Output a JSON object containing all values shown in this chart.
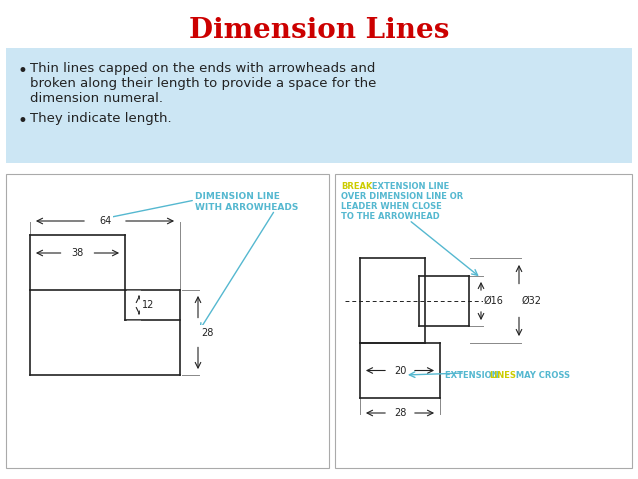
{
  "title": "Dimension Lines",
  "title_color": "#cc0000",
  "title_fontsize": 20,
  "bullet1_line1": "Thin lines capped on the ends with arrowheads and",
  "bullet1_line2": "broken along their length to provide a space for the",
  "bullet1_line3": "dimension numeral.",
  "bullet2": "They indicate length.",
  "bg_color": "#ffffff",
  "bullet_bg": "#cce6f4",
  "cyan": "#55b8d0",
  "yellow": "#cccc00",
  "black": "#222222",
  "gray": "#888888",
  "light_gray": "#aaaaaa"
}
